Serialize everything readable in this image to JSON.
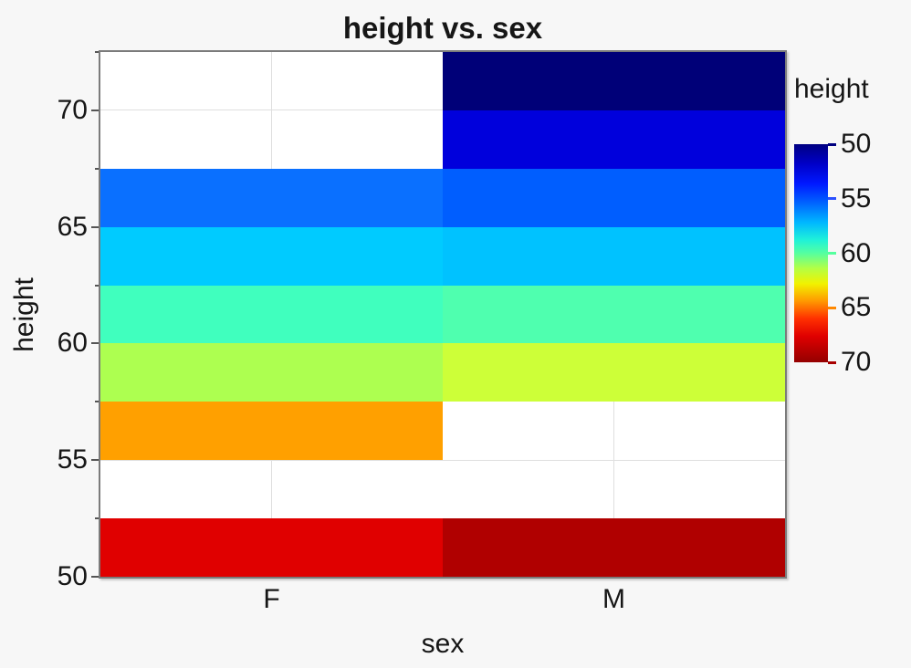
{
  "page": {
    "background": "#f7f7f7",
    "plot_background": "#ffffff",
    "plot_border_color": "#7b7b7b",
    "gridline_color": "#dfdfdf",
    "text_color": "#161616"
  },
  "chart_data": {
    "type": "heatmap",
    "title": "height vs. sex",
    "xlabel": "sex",
    "ylabel": "height",
    "x_categories": [
      "F",
      "M"
    ],
    "y_axis": {
      "min": 50,
      "max": 72.5,
      "major_ticks": [
        70,
        65,
        60,
        55,
        50
      ],
      "minor_ticks": [
        72.5,
        67.5,
        62.5,
        57.5,
        52.5
      ],
      "bin_size": 2.5
    },
    "grid": {
      "horizontal_at": [
        70,
        65,
        60,
        55
      ],
      "vertical_at_category_centers": true
    },
    "cells": [
      {
        "sex": "F",
        "height_bin": [
          65,
          67.5
        ],
        "color": "#0a70ff"
      },
      {
        "sex": "F",
        "height_bin": [
          62.5,
          65
        ],
        "color": "#00cbff"
      },
      {
        "sex": "F",
        "height_bin": [
          60,
          62.5
        ],
        "color": "#40ffbe"
      },
      {
        "sex": "F",
        "height_bin": [
          57.5,
          60
        ],
        "color": "#adff50"
      },
      {
        "sex": "F",
        "height_bin": [
          55,
          57.5
        ],
        "color": "#ffa000"
      },
      {
        "sex": "F",
        "height_bin": [
          50,
          52.5
        ],
        "color": "#e00000"
      },
      {
        "sex": "M",
        "height_bin": [
          70,
          72.5
        ],
        "color": "#000078"
      },
      {
        "sex": "M",
        "height_bin": [
          67.5,
          70
        ],
        "color": "#0000dc"
      },
      {
        "sex": "M",
        "height_bin": [
          65,
          67.5
        ],
        "color": "#005eff"
      },
      {
        "sex": "M",
        "height_bin": [
          62.5,
          65
        ],
        "color": "#00c2ff"
      },
      {
        "sex": "M",
        "height_bin": [
          60,
          62.5
        ],
        "color": "#4fffaf"
      },
      {
        "sex": "M",
        "height_bin": [
          57.5,
          60
        ],
        "color": "#cdff38"
      },
      {
        "sex": "M",
        "height_bin": [
          50,
          52.5
        ],
        "color": "#b00000"
      }
    ],
    "empty_cells": [
      {
        "sex": "F",
        "height_bin": [
          70,
          72.5
        ]
      },
      {
        "sex": "F",
        "height_bin": [
          67.5,
          70
        ]
      },
      {
        "sex": "F",
        "height_bin": [
          52.5,
          55
        ]
      },
      {
        "sex": "M",
        "height_bin": [
          55,
          57.5
        ]
      },
      {
        "sex": "M",
        "height_bin": [
          52.5,
          55
        ]
      }
    ],
    "legend": {
      "title": "height",
      "min": 50,
      "max": 70,
      "tick_labels": [
        "50",
        "55",
        "60",
        "65",
        "70"
      ],
      "tick_values": [
        50,
        55,
        60,
        65,
        70
      ],
      "tick_colors": [
        "#000080",
        "#2a50ff",
        "#55ff9e",
        "#ff8800",
        "#a80000"
      ],
      "colormap": "jet",
      "gradient_stops": [
        {
          "p": 0,
          "c": "#000082"
        },
        {
          "p": 9,
          "c": "#0000c8"
        },
        {
          "p": 18,
          "c": "#0018ff"
        },
        {
          "p": 27,
          "c": "#0064ff"
        },
        {
          "p": 36,
          "c": "#00b8ff"
        },
        {
          "p": 44,
          "c": "#20f2d8"
        },
        {
          "p": 50,
          "c": "#55ffa0"
        },
        {
          "p": 57,
          "c": "#b4ff44"
        },
        {
          "p": 64,
          "c": "#f2f200"
        },
        {
          "p": 72,
          "c": "#ff9800"
        },
        {
          "p": 80,
          "c": "#ff3000"
        },
        {
          "p": 88,
          "c": "#e00000"
        },
        {
          "p": 100,
          "c": "#940000"
        }
      ]
    }
  }
}
